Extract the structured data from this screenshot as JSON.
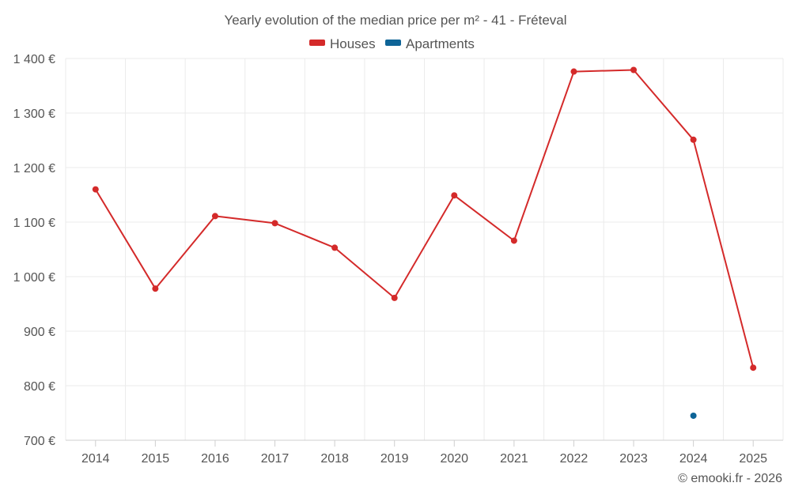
{
  "chart_data": {
    "type": "line",
    "title": "Yearly evolution of the median price per m² - 41 - Fréteval",
    "categories": [
      "2014",
      "2015",
      "2016",
      "2017",
      "2018",
      "2019",
      "2020",
      "2021",
      "2022",
      "2023",
      "2024",
      "2025"
    ],
    "series": [
      {
        "name": "Houses",
        "color": "#d42a2a",
        "values": [
          1160,
          978,
          1111,
          1098,
          1053,
          961,
          1149,
          1066,
          1376,
          1379,
          1251,
          833
        ]
      },
      {
        "name": "Apartments",
        "color": "#0e6497",
        "values": [
          null,
          null,
          null,
          null,
          null,
          null,
          null,
          null,
          null,
          null,
          745,
          null
        ]
      }
    ],
    "ylim": [
      700,
      1400
    ],
    "yticks": [
      700,
      800,
      900,
      1000,
      1100,
      1200,
      1300,
      1400
    ],
    "ytick_labels": [
      "700 €",
      "800 €",
      "900 €",
      "1 000 €",
      "1 100 €",
      "1 200 €",
      "1 300 €",
      "1 400 €"
    ],
    "xlabel": "",
    "ylabel": "",
    "grid": true,
    "legend_position": "top-center"
  },
  "credit": "© emooki.fr - 2026"
}
